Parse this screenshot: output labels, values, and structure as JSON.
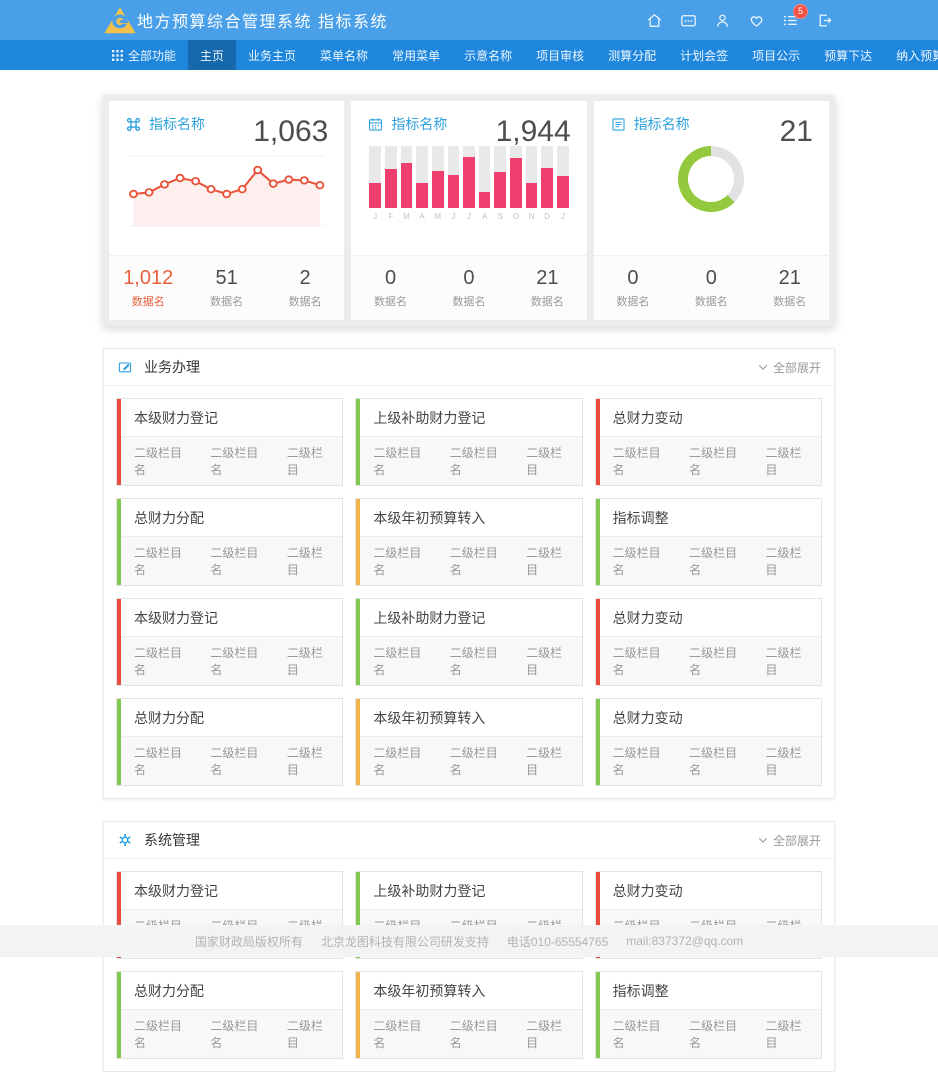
{
  "app": {
    "title": "地方预算综合管理系统 指标系统"
  },
  "header": {
    "icons": [
      {
        "name": "home-icon"
      },
      {
        "name": "message-icon"
      },
      {
        "name": "user-icon"
      },
      {
        "name": "heart-icon"
      },
      {
        "name": "notifications-list-icon",
        "badge": "5"
      },
      {
        "name": "logout-icon"
      }
    ]
  },
  "nav": {
    "items": [
      {
        "label": "全部功能",
        "icon": "grid-icon"
      },
      {
        "label": "主页",
        "active": true
      },
      {
        "label": "业务主页"
      },
      {
        "label": "菜单名称"
      },
      {
        "label": "常用菜单"
      },
      {
        "label": "示意名称"
      },
      {
        "label": "项目审核"
      },
      {
        "label": "测算分配"
      },
      {
        "label": "计划会签"
      },
      {
        "label": "项目公示"
      },
      {
        "label": "预算下达"
      },
      {
        "label": "纳入预算"
      }
    ]
  },
  "stat_cards": [
    {
      "icon": "command-icon",
      "title": "指标名称",
      "value": "1,063",
      "chart": {
        "type": "line",
        "values": [
          40,
          42,
          52,
          60,
          56,
          46,
          40,
          46,
          70,
          53,
          58,
          57,
          51
        ]
      },
      "stats": [
        {
          "value": "1,012",
          "label": "数据名",
          "highlight": true
        },
        {
          "value": "51",
          "label": "数据名"
        },
        {
          "value": "2",
          "label": "数据名"
        }
      ]
    },
    {
      "icon": "calendar-icon",
      "title": "指标名称",
      "value": "1,944",
      "chart": {
        "type": "bar",
        "categories": [
          "J",
          "F",
          "M",
          "A",
          "M",
          "J",
          "J",
          "A",
          "S",
          "O",
          "N",
          "D",
          "J"
        ],
        "values": [
          40,
          63,
          72,
          41,
          59,
          53,
          83,
          26,
          58,
          80,
          41,
          65,
          51
        ]
      },
      "stats": [
        {
          "value": "0",
          "label": "数据名"
        },
        {
          "value": "0",
          "label": "数据名"
        },
        {
          "value": "21",
          "label": "数据名"
        }
      ]
    },
    {
      "icon": "doc-list-icon",
      "title": "指标名称",
      "value": "21",
      "chart": {
        "type": "donut",
        "percent": 62.5,
        "color": "#94c93d",
        "track": "#e2e2e2"
      },
      "stats": [
        {
          "value": "0",
          "label": "数据名"
        },
        {
          "value": "0",
          "label": "数据名"
        },
        {
          "value": "21",
          "label": "数据名"
        }
      ]
    }
  ],
  "sections": [
    {
      "icon": "edit-icon",
      "title": "业务办理",
      "expand_label": "全部展开",
      "cards": [
        {
          "title": "本级财力登记",
          "color": "red",
          "links": [
            "二级栏目名",
            "二级栏目名",
            "二级栏目"
          ]
        },
        {
          "title": "上级补助财力登记",
          "color": "green",
          "links": [
            "二级栏目名",
            "二级栏目名",
            "二级栏目"
          ]
        },
        {
          "title": "总财力变动",
          "color": "red",
          "links": [
            "二级栏目名",
            "二级栏目名",
            "二级栏目"
          ]
        },
        {
          "title": "总财力分配",
          "color": "green",
          "links": [
            "二级栏目名",
            "二级栏目名",
            "二级栏目"
          ]
        },
        {
          "title": "本级年初预算转入",
          "color": "yellow",
          "links": [
            "二级栏目名",
            "二级栏目名",
            "二级栏目"
          ]
        },
        {
          "title": "指标调整",
          "color": "green",
          "links": [
            "二级栏目名",
            "二级栏目名",
            "二级栏目"
          ]
        },
        {
          "title": "本级财力登记",
          "color": "red",
          "links": [
            "二级栏目名",
            "二级栏目名",
            "二级栏目"
          ]
        },
        {
          "title": "上级补助财力登记",
          "color": "green",
          "links": [
            "二级栏目名",
            "二级栏目名",
            "二级栏目"
          ]
        },
        {
          "title": "总财力变动",
          "color": "red",
          "links": [
            "二级栏目名",
            "二级栏目名",
            "二级栏目"
          ]
        },
        {
          "title": "总财力分配",
          "color": "green",
          "links": [
            "二级栏目名",
            "二级栏目名",
            "二级栏目"
          ]
        },
        {
          "title": "本级年初预算转入",
          "color": "yellow",
          "links": [
            "二级栏目名",
            "二级栏目名",
            "二级栏目"
          ]
        },
        {
          "title": "总财力变动",
          "color": "green",
          "links": [
            "二级栏目名",
            "二级栏目名",
            "二级栏目"
          ]
        }
      ]
    },
    {
      "icon": "gear-icon",
      "title": "系统管理",
      "expand_label": "全部展开",
      "cards": [
        {
          "title": "本级财力登记",
          "color": "red",
          "links": [
            "二级栏目名",
            "二级栏目名",
            "二级栏目"
          ]
        },
        {
          "title": "上级补助财力登记",
          "color": "green",
          "links": [
            "二级栏目名",
            "二级栏目名",
            "二级栏目"
          ]
        },
        {
          "title": "总财力变动",
          "color": "red",
          "links": [
            "二级栏目名",
            "二级栏目名",
            "二级栏目"
          ]
        },
        {
          "title": "总财力分配",
          "color": "green",
          "links": [
            "二级栏目名",
            "二级栏目名",
            "二级栏目"
          ]
        },
        {
          "title": "本级年初预算转入",
          "color": "yellow",
          "links": [
            "二级栏目名",
            "二级栏目名",
            "二级栏目"
          ]
        },
        {
          "title": "指标调整",
          "color": "green",
          "links": [
            "二级栏目名",
            "二级栏目名",
            "二级栏目"
          ]
        }
      ]
    }
  ],
  "footer": {
    "items": [
      "国家财政局版权所有",
      "北京龙图科技有限公司研发支持",
      "电话010-65554765",
      "mail:837372@qq.com"
    ]
  },
  "colors": {
    "header_blue": "#4aa0e8",
    "nav_blue": "#1e86dc",
    "nav_active_blue": "#1568ab",
    "accent_blue": "#2ea2df",
    "line_red": "#e8533a",
    "bar_pink": "#ee3f6e",
    "donut_green": "#94c93d",
    "card_red": "#e74c3c",
    "card_green": "#82c94f",
    "card_yellow": "#f0b44a",
    "highlight_orange": "#e8603c",
    "badge_red": "#f25248"
  }
}
